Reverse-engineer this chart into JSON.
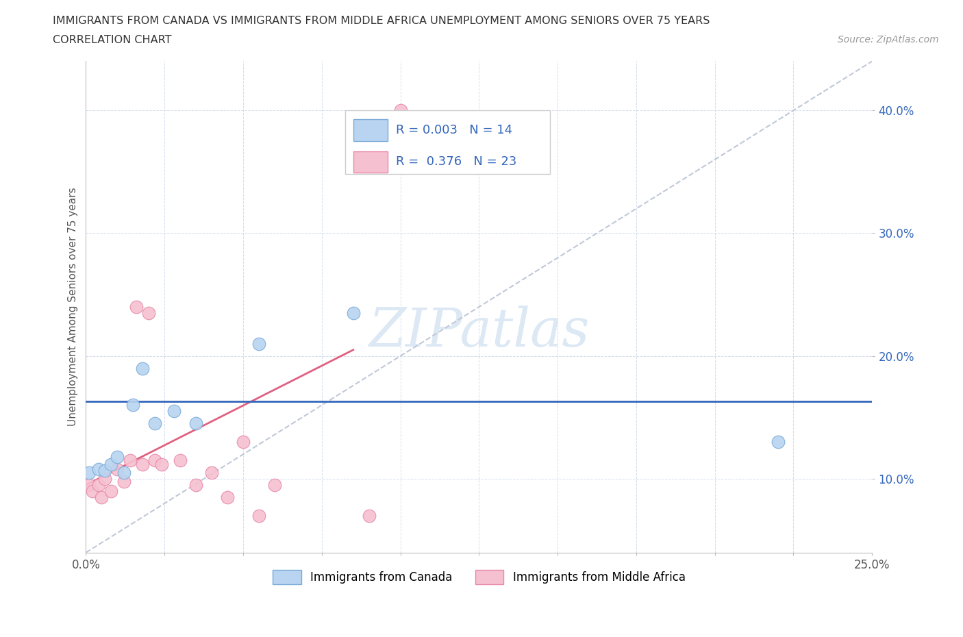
{
  "title_line1": "IMMIGRANTS FROM CANADA VS IMMIGRANTS FROM MIDDLE AFRICA UNEMPLOYMENT AMONG SENIORS OVER 75 YEARS",
  "title_line2": "CORRELATION CHART",
  "source": "Source: ZipAtlas.com",
  "ylabel": "Unemployment Among Seniors over 75 years",
  "xlim": [
    0.0,
    0.25
  ],
  "ylim": [
    0.04,
    0.44
  ],
  "x_ticks": [
    0.0,
    0.025,
    0.05,
    0.075,
    0.1,
    0.125,
    0.15,
    0.175,
    0.2,
    0.225,
    0.25
  ],
  "y_ticks": [
    0.1,
    0.2,
    0.3,
    0.4
  ],
  "canada_color": "#b8d4f0",
  "canada_edge": "#7aaad8",
  "africa_color": "#f5c0d0",
  "africa_edge": "#e888a8",
  "trend_canada_color": "#c0c8d8",
  "trend_africa_color": "#e06080",
  "hline_color": "#3366bb",
  "hline_y": 0.163,
  "canada_R": 0.003,
  "canada_N": 14,
  "africa_R": 0.376,
  "africa_N": 23,
  "canada_points_x": [
    0.001,
    0.004,
    0.006,
    0.008,
    0.01,
    0.012,
    0.015,
    0.018,
    0.022,
    0.028,
    0.035,
    0.055,
    0.085,
    0.22
  ],
  "canada_points_y": [
    0.105,
    0.108,
    0.107,
    0.112,
    0.118,
    0.105,
    0.16,
    0.19,
    0.145,
    0.155,
    0.145,
    0.21,
    0.235,
    0.13
  ],
  "africa_points_x": [
    0.001,
    0.002,
    0.004,
    0.005,
    0.006,
    0.008,
    0.01,
    0.012,
    0.014,
    0.016,
    0.018,
    0.02,
    0.022,
    0.024,
    0.03,
    0.035,
    0.04,
    0.045,
    0.05,
    0.055,
    0.06,
    0.09,
    0.1
  ],
  "africa_points_y": [
    0.095,
    0.09,
    0.095,
    0.085,
    0.1,
    0.09,
    0.108,
    0.098,
    0.115,
    0.24,
    0.112,
    0.235,
    0.115,
    0.112,
    0.115,
    0.095,
    0.105,
    0.085,
    0.13,
    0.07,
    0.095,
    0.07,
    0.4
  ],
  "africa_trend_x0": 0.0,
  "africa_trend_y0": 0.095,
  "africa_trend_x1": 0.085,
  "africa_trend_y1": 0.205,
  "canada_trend_x0": 0.0,
  "canada_trend_y0": 0.04,
  "canada_trend_x1": 0.25,
  "canada_trend_y1": 0.44,
  "legend_text_color": "#3366bb",
  "bottom_legend_canada": "Immigrants from Canada",
  "bottom_legend_africa": "Immigrants from Middle Africa",
  "watermark_color": "#dce8f4"
}
